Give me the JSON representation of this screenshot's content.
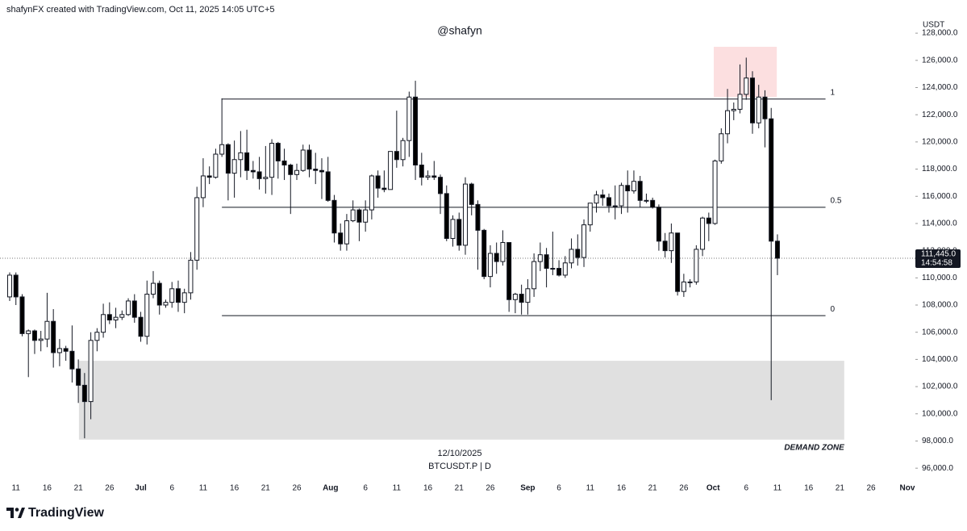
{
  "header": "shafynFX created with TradingView.com, Oct 11, 2025 14:05 UTC+5",
  "brand": "TradingView",
  "chart_data": {
    "type": "candlestick",
    "watermark": "@shafyn",
    "symbol": "BTCUSDT.P | D",
    "crosshair_date": "12/10/2025",
    "y_axis_label": "USDT",
    "up_color": "#ffffff",
    "down_color": "#000000",
    "open": [
      108600,
      110200,
      108600,
      105900,
      106100,
      105400,
      105500,
      106800,
      104500,
      104800,
      104600,
      103300,
      102100,
      100900,
      105400,
      106000,
      107300,
      106900,
      107100,
      107300,
      108300,
      107100,
      105700,
      108800,
      109600,
      108000,
      108200,
      109200,
      108200,
      108900,
      111300,
      115900,
      117500,
      117400,
      119100,
      119800,
      117700,
      118700,
      119200,
      117900,
      117800,
      117300,
      117400,
      119900,
      118600,
      118300,
      117600,
      117900,
      119400,
      118000,
      117900,
      117800,
      115700,
      113300,
      112500,
      114200,
      115000,
      114100,
      115000,
      117500,
      116600,
      116500,
      119300,
      118700,
      120100,
      123300,
      118300,
      117400,
      117500,
      117400,
      116200,
      112900,
      114300,
      112400,
      116900,
      115400,
      113500,
      110100,
      111800,
      111200,
      112600,
      108400,
      108800,
      108200,
      109200,
      111200,
      111700,
      110700,
      110700,
      110200,
      111100,
      112100,
      111500,
      113900,
      115500,
      116100,
      115900,
      115300,
      115300,
      116800,
      116400,
      117100,
      115700,
      115700,
      115200,
      112700,
      112000,
      113300,
      109000,
      109700,
      109700,
      112100,
      114400,
      114000,
      118600,
      120600,
      122300,
      122400,
      123500,
      124700,
      121400,
      123300,
      121700,
      112700
    ],
    "high": [
      110400,
      110400,
      108800,
      106200,
      106200,
      106100,
      108900,
      107700,
      105500,
      105000,
      106500,
      104000,
      103000,
      106000,
      106300,
      108100,
      108200,
      107800,
      107600,
      108500,
      108800,
      107500,
      109800,
      110500,
      109800,
      108400,
      109700,
      109800,
      109200,
      111900,
      116700,
      118800,
      118200,
      119500,
      123200,
      119900,
      120100,
      120800,
      120900,
      118600,
      118900,
      119700,
      120200,
      120000,
      119500,
      118400,
      118400,
      119800,
      119800,
      119200,
      118800,
      118900,
      116100,
      114000,
      114700,
      115700,
      115100,
      115700,
      117600,
      117900,
      117900,
      119300,
      122300,
      120300,
      123700,
      124500,
      119200,
      117900,
      118600,
      117600,
      116800,
      114600,
      114800,
      117400,
      117000,
      115700,
      113600,
      112400,
      112600,
      113500,
      112600,
      108900,
      109500,
      109900,
      111800,
      112600,
      112200,
      113400,
      111300,
      111600,
      112900,
      113200,
      114300,
      115500,
      116400,
      116500,
      116200,
      116800,
      117000,
      117900,
      117900,
      117500,
      116200,
      115900,
      115400,
      113300,
      114000,
      113300,
      110300,
      109900,
      112400,
      114500,
      114800,
      118700,
      121000,
      123900,
      122900,
      125700,
      126200,
      125200,
      124200,
      123800,
      122500,
      113200
    ],
    "low": [
      108300,
      108000,
      105700,
      102700,
      104400,
      104600,
      104900,
      103400,
      103500,
      103900,
      102300,
      100800,
      98200,
      99600,
      104600,
      105600,
      106600,
      106300,
      106900,
      107200,
      106700,
      105300,
      105100,
      108500,
      107300,
      107800,
      107800,
      107500,
      107400,
      108400,
      110600,
      115200,
      116900,
      117300,
      118900,
      115700,
      115900,
      117400,
      117200,
      117300,
      116500,
      116200,
      116100,
      117300,
      117200,
      114700,
      117200,
      117800,
      117400,
      116900,
      115800,
      115600,
      112600,
      112000,
      112000,
      114100,
      112700,
      113400,
      114300,
      115900,
      116300,
      116500,
      118100,
      118200,
      118900,
      117200,
      116800,
      117200,
      117200,
      114700,
      112700,
      112300,
      112000,
      111700,
      114600,
      110600,
      109900,
      109300,
      110300,
      110900,
      107500,
      107400,
      107300,
      107300,
      108600,
      110500,
      109300,
      110200,
      110100,
      110000,
      110700,
      110900,
      110800,
      113400,
      114800,
      115300,
      114800,
      114300,
      114700,
      114800,
      116200,
      115200,
      115500,
      115100,
      112000,
      111500,
      111100,
      108700,
      108600,
      109300,
      109500,
      111600,
      112700,
      113900,
      118400,
      119900,
      121600,
      122100,
      123100,
      120600,
      121000,
      119600,
      101000,
      110200
    ],
    "close": [
      110200,
      108600,
      105900,
      106100,
      105400,
      105500,
      106800,
      104500,
      104800,
      104600,
      103300,
      102100,
      100900,
      105400,
      106000,
      107300,
      106900,
      107100,
      107300,
      108300,
      107100,
      105700,
      108800,
      109600,
      108000,
      108200,
      109200,
      108200,
      108900,
      111300,
      115900,
      117500,
      117400,
      119100,
      119800,
      117700,
      118700,
      119200,
      117900,
      117800,
      117300,
      117400,
      119900,
      118600,
      118300,
      117600,
      117900,
      119400,
      118000,
      117900,
      117800,
      115700,
      113300,
      112500,
      114200,
      115000,
      114100,
      115000,
      117500,
      116600,
      116500,
      119300,
      118700,
      120100,
      123300,
      118300,
      117400,
      117500,
      117400,
      116200,
      112900,
      114300,
      112400,
      116900,
      115400,
      113500,
      110100,
      111800,
      111200,
      112600,
      108400,
      108800,
      108200,
      109200,
      111200,
      111700,
      110700,
      110700,
      110200,
      111100,
      112100,
      111500,
      113900,
      115500,
      116100,
      115900,
      115300,
      115300,
      116800,
      116400,
      117100,
      115700,
      115700,
      115200,
      112700,
      112000,
      113300,
      109000,
      109700,
      109700,
      112100,
      114400,
      114000,
      118600,
      120600,
      122300,
      122400,
      123500,
      124700,
      121400,
      123300,
      121700,
      112700,
      111445
    ],
    "last_price": {
      "value": 111445,
      "label": "111,445.0",
      "countdown": "14:54:58"
    },
    "xlim": [
      -1.55,
      145.1
    ],
    "xticks": [
      {
        "value": 1,
        "label": "11"
      },
      {
        "value": 6,
        "label": "16"
      },
      {
        "value": 11,
        "label": "21"
      },
      {
        "value": 16,
        "label": "26"
      },
      {
        "value": 21,
        "label": "Jul"
      },
      {
        "value": 26,
        "label": "6"
      },
      {
        "value": 31,
        "label": "11"
      },
      {
        "value": 36,
        "label": "16"
      },
      {
        "value": 41,
        "label": "21"
      },
      {
        "value": 46,
        "label": "26"
      },
      {
        "value": 51.4,
        "label": "Aug"
      },
      {
        "value": 57,
        "label": "6"
      },
      {
        "value": 62,
        "label": "11"
      },
      {
        "value": 67,
        "label": "16"
      },
      {
        "value": 72,
        "label": "21"
      },
      {
        "value": 77,
        "label": "26"
      },
      {
        "value": 83,
        "label": "Sep"
      },
      {
        "value": 88,
        "label": "6"
      },
      {
        "value": 93,
        "label": "11"
      },
      {
        "value": 98,
        "label": "16"
      },
      {
        "value": 103,
        "label": "21"
      },
      {
        "value": 108,
        "label": "26"
      },
      {
        "value": 112.7,
        "label": "Oct"
      },
      {
        "value": 118,
        "label": "6"
      },
      {
        "value": 123,
        "label": "11"
      },
      {
        "value": 128,
        "label": "16"
      },
      {
        "value": 133,
        "label": "21"
      },
      {
        "value": 138,
        "label": "26"
      },
      {
        "value": 143.8,
        "label": "Nov"
      }
    ],
    "ylim": [
      95000,
      128600
    ],
    "yticks": [
      {
        "value": 96000,
        "label": "96,000.0"
      },
      {
        "value": 98000,
        "label": "98,000.0"
      },
      {
        "value": 100000,
        "label": "100,000.0"
      },
      {
        "value": 102000,
        "label": "102,000.0"
      },
      {
        "value": 104000,
        "label": "104,000.0"
      },
      {
        "value": 106000,
        "label": "106,000.0"
      },
      {
        "value": 108000,
        "label": "108,000.0"
      },
      {
        "value": 110000,
        "label": "110,000.0"
      },
      {
        "value": 112000,
        "label": "112,000.0"
      },
      {
        "value": 114000,
        "label": "114,000.0"
      },
      {
        "value": 116000,
        "label": "116,000.0"
      },
      {
        "value": 118000,
        "label": "118,000.0"
      },
      {
        "value": 120000,
        "label": "120,000.0"
      },
      {
        "value": 122000,
        "label": "122,000.0"
      },
      {
        "value": 124000,
        "label": "124,000.0"
      },
      {
        "value": 126000,
        "label": "126,000.0"
      },
      {
        "value": 128000,
        "label": "128,000.0"
      }
    ],
    "fib": {
      "from": 34,
      "to": 130.7,
      "levels": [
        {
          "ratio": 1,
          "price": 123150
        },
        {
          "ratio": 0.5,
          "price": 115190
        },
        {
          "ratio": 0,
          "price": 107220
        }
      ]
    },
    "zones": [
      {
        "from": 11.1,
        "to": 133.7,
        "top": 103900,
        "bottom": 98100,
        "color": "#e0e0e0",
        "label": "DEMAND ZONE"
      },
      {
        "from": 112.8,
        "to": 122.9,
        "top": 127000,
        "bottom": 123300,
        "color": "#fcdfe0"
      }
    ]
  }
}
